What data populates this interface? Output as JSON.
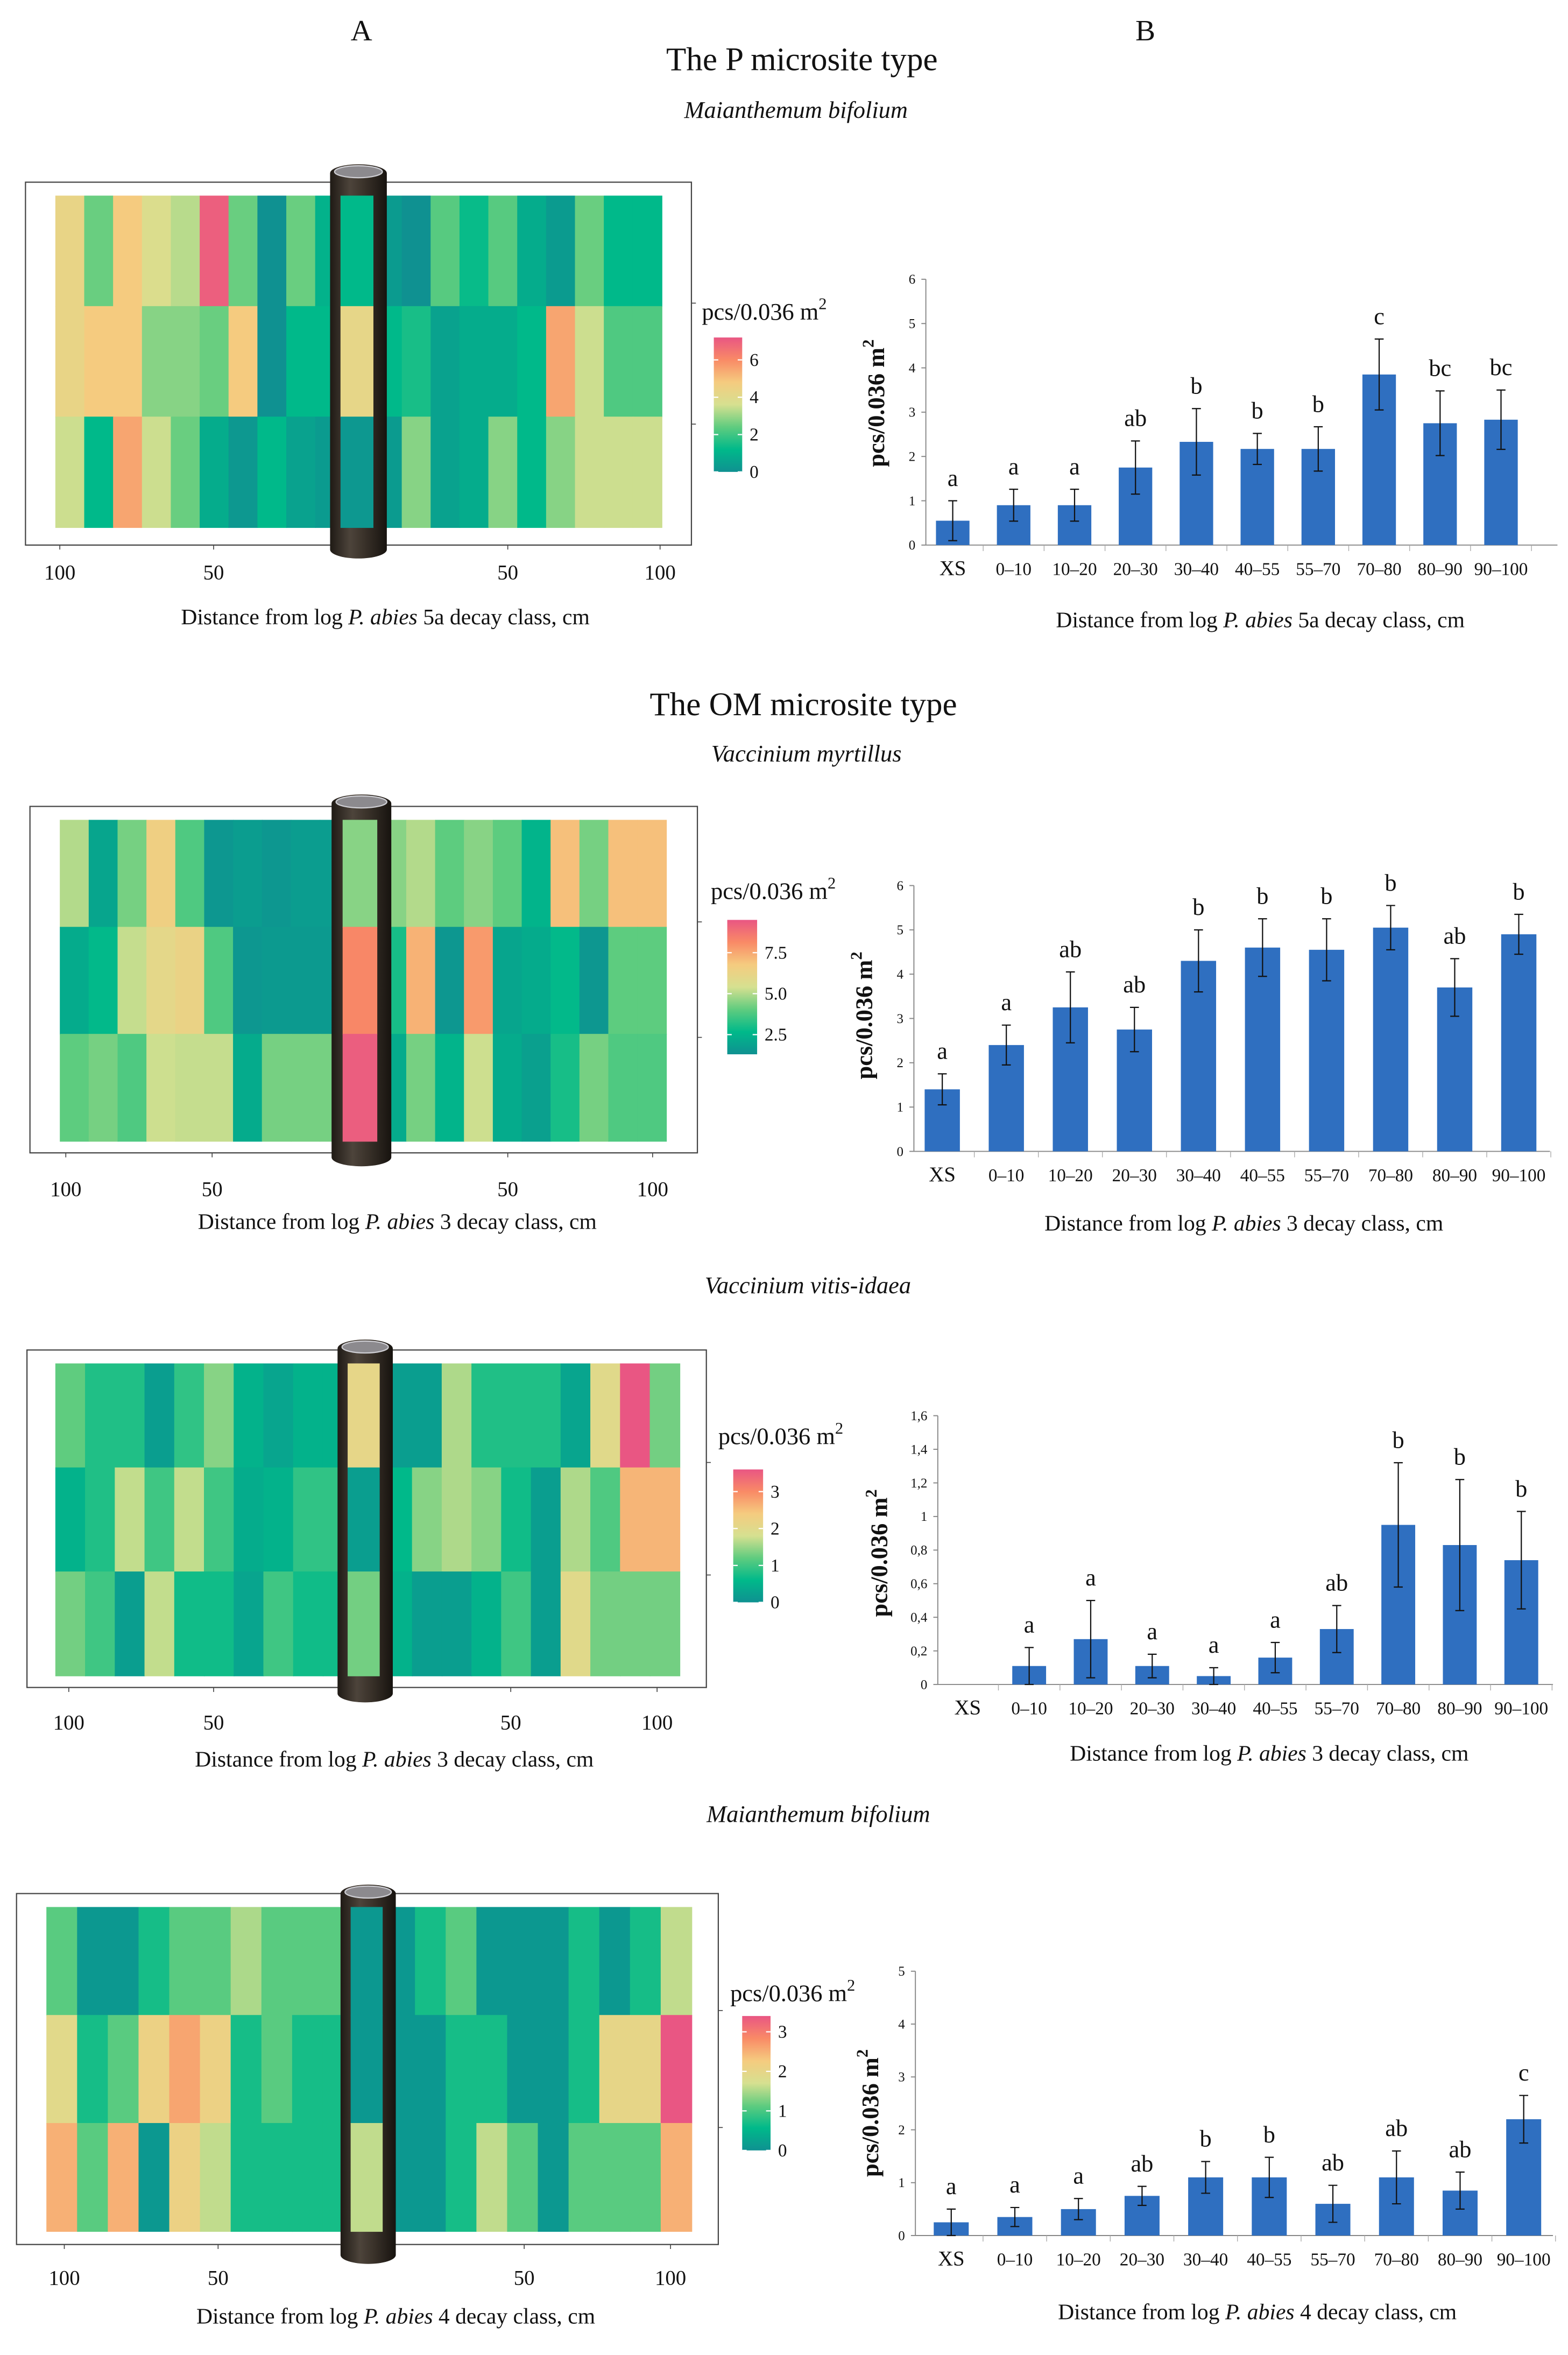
{
  "panel_labels": {
    "a": "A",
    "b": "B"
  },
  "sections": {
    "p": "The P microsite type",
    "om": "The OM microsite type"
  },
  "species": [
    "Maianthemum bifolium",
    "Vaccinium myrtillus",
    "Vaccinium vitis-idaea",
    "Maianthemum bifolium"
  ],
  "colors": {
    "bar": "#2f6fc0",
    "scale": [
      "#0f9191",
      "#00b98a",
      "#5fcc7f",
      "#d6e090",
      "#f5cb7f",
      "#f98a66",
      "#e95683"
    ]
  },
  "heatmaps": [
    {
      "legend_title": "pcs/0.036 m",
      "legend_sup": "2",
      "legend_range": [
        0,
        7.2
      ],
      "legend_ticks": [
        {
          "v": 0,
          "label": "0"
        },
        {
          "v": 2,
          "label": "2"
        },
        {
          "v": 4,
          "label": "4"
        },
        {
          "v": 6,
          "label": "6"
        }
      ],
      "x_tick_labels": [
        "100",
        "50",
        "50",
        "100"
      ],
      "xlabel": {
        "prefix": "Distance from  log ",
        "species": "P. abies",
        "suffix": " 5a decay class, cm"
      },
      "rows": [
        [
          4.3,
          2.5,
          4.8,
          3.8,
          3.3,
          7.0,
          2.5,
          0.0,
          2.5,
          1.0,
          1.2,
          0.3,
          0.0,
          2.3,
          1.3,
          2.3,
          0.8,
          0.3,
          2.5,
          1.2,
          1.2
        ],
        [
          4.3,
          4.8,
          4.8,
          2.8,
          2.8,
          2.5,
          4.8,
          0.0,
          1.2,
          1.2,
          4.2,
          1.2,
          1.5,
          0.5,
          0.8,
          0.8,
          1.2,
          5.5,
          3.5,
          2.2,
          2.2
        ],
        [
          3.5,
          1.2,
          5.5,
          3.5,
          2.5,
          0.8,
          0.2,
          1.2,
          0.5,
          0.3,
          0.2,
          0.3,
          2.8,
          0.5,
          0.8,
          2.8,
          1.2,
          2.8,
          3.5,
          3.5,
          3.5
        ]
      ]
    },
    {
      "legend_title": "pcs/0.036 m",
      "legend_sup": "2",
      "legend_range": [
        1.3,
        9.5
      ],
      "legend_ticks": [
        {
          "v": 2.5,
          "label": "2.5"
        },
        {
          "v": 5.0,
          "label": "5.0"
        },
        {
          "v": 7.5,
          "label": "7.5"
        }
      ],
      "x_tick_labels": [
        "100",
        "50",
        "50",
        "100"
      ],
      "xlabel": {
        "prefix": "Distance from log ",
        "species": "P. abies",
        "suffix": " 3 decay class, cm"
      },
      "rows": [
        [
          5.0,
          2.0,
          4.3,
          6.5,
          3.8,
          1.5,
          1.7,
          1.5,
          1.7,
          1.7,
          4.5,
          4.5,
          5.0,
          4.0,
          4.5,
          4.0,
          2.5,
          7.0,
          4.3,
          7.0,
          7.0
        ],
        [
          2.2,
          2.7,
          5.2,
          6.0,
          6.3,
          3.8,
          1.5,
          1.6,
          1.6,
          1.6,
          8.2,
          3.0,
          7.3,
          1.5,
          7.8,
          2.0,
          2.2,
          2.7,
          1.5,
          4.0,
          4.0
        ],
        [
          4.0,
          4.3,
          3.8,
          5.3,
          5.2,
          5.2,
          2.2,
          4.3,
          4.3,
          4.3,
          9.3,
          2.2,
          4.3,
          2.5,
          5.3,
          2.2,
          1.8,
          3.0,
          4.3,
          3.8,
          3.8
        ]
      ]
    },
    {
      "legend_title": "pcs/0.036 m",
      "legend_sup": "2",
      "legend_range": [
        0,
        3.6
      ],
      "legend_ticks": [
        {
          "v": 0,
          "label": "0"
        },
        {
          "v": 1,
          "label": "1"
        },
        {
          "v": 2,
          "label": "2"
        },
        {
          "v": 3,
          "label": "3"
        }
      ],
      "x_tick_labels": [
        "100",
        "50",
        "50",
        "100"
      ],
      "xlabel": {
        "prefix": "Distance from log ",
        "species": "P. abies",
        "suffix": " 3 decay class, cm"
      },
      "rows": [
        [
          1.2,
          0.8,
          0.8,
          0.2,
          0.9,
          1.4,
          0.5,
          0.3,
          0.5,
          0.5,
          2.1,
          0.2,
          0.2,
          1.6,
          0.8,
          0.8,
          0.8,
          0.3,
          2.0,
          3.6,
          1.3
        ],
        [
          0.5,
          0.8,
          1.7,
          1.0,
          1.7,
          1.0,
          0.4,
          0.5,
          0.9,
          0.9,
          0.2,
          0.6,
          1.4,
          1.6,
          1.4,
          0.7,
          0.2,
          1.6,
          1.1,
          2.6,
          2.6
        ],
        [
          1.3,
          1.0,
          0.2,
          1.7,
          0.7,
          0.7,
          0.3,
          1.0,
          0.7,
          0.7,
          1.3,
          0.5,
          0.2,
          0.2,
          0.5,
          1.0,
          0.2,
          2.0,
          1.3,
          1.3,
          1.3
        ]
      ]
    },
    {
      "legend_title": "pcs/0.036 m",
      "legend_sup": "2",
      "legend_range": [
        0,
        3.4
      ],
      "legend_ticks": [
        {
          "v": 0,
          "label": "0"
        },
        {
          "v": 1,
          "label": "1"
        },
        {
          "v": 2,
          "label": "2"
        },
        {
          "v": 3,
          "label": "3"
        }
      ],
      "x_tick_labels": [
        "100",
        "50",
        "50",
        "100"
      ],
      "xlabel": {
        "prefix": "Distance from log ",
        "species": "P. abies",
        "suffix": " 4 decay class, cm"
      },
      "rows": [
        [
          1.1,
          0.1,
          0.1,
          0.7,
          1.1,
          1.1,
          1.5,
          1.1,
          1.1,
          1.1,
          0.1,
          0.1,
          0.7,
          1.1,
          0.1,
          0.1,
          0.1,
          0.7,
          0.1,
          0.7,
          1.6
        ],
        [
          1.9,
          0.7,
          1.1,
          2.1,
          2.6,
          2.1,
          0.7,
          1.1,
          0.7,
          0.7,
          0.1,
          0.1,
          0.1,
          0.7,
          0.7,
          0.1,
          0.1,
          0.7,
          2.0,
          2.0,
          3.4
        ],
        [
          2.5,
          1.1,
          2.5,
          0.1,
          2.1,
          1.6,
          0.7,
          0.7,
          0.7,
          0.7,
          1.6,
          0.1,
          0.1,
          0.7,
          1.6,
          1.1,
          0.1,
          1.1,
          1.1,
          1.1,
          2.5
        ]
      ]
    }
  ],
  "chart_data": [
    {
      "type": "bar",
      "title": "",
      "ylabel": "pcs/0.036 m",
      "ylabel_sup": "2",
      "xlabel": {
        "prefix": "Distance from  log ",
        "species": "P. abies",
        "suffix": " 5a decay class, cm"
      },
      "categories": [
        "XS",
        "0–10",
        "10–20",
        "20–30",
        "30–40",
        "40–55",
        "55–70",
        "70–80",
        "80–90",
        "90–100"
      ],
      "values": [
        0.55,
        0.9,
        0.9,
        1.75,
        2.33,
        2.17,
        2.17,
        3.85,
        2.75,
        2.83
      ],
      "errors": [
        0.45,
        0.36,
        0.36,
        0.6,
        0.75,
        0.35,
        0.5,
        0.8,
        0.73,
        0.67
      ],
      "letters": [
        "a",
        "a",
        "a",
        "ab",
        "b",
        "b",
        "b",
        "c",
        "bc",
        "bc"
      ],
      "ylim": [
        0,
        6
      ],
      "y_ticks": [
        {
          "v": 0,
          "label": "0"
        },
        {
          "v": 1,
          "label": "1"
        },
        {
          "v": 2,
          "label": "2"
        },
        {
          "v": 3,
          "label": "3"
        },
        {
          "v": 4,
          "label": "4"
        },
        {
          "v": 5,
          "label": "5"
        },
        {
          "v": 6,
          "label": "6"
        }
      ]
    },
    {
      "type": "bar",
      "title": "",
      "ylabel": "pcs/0.036 m",
      "ylabel_sup": "2",
      "xlabel": {
        "prefix": "Distance from  log ",
        "species": "P. abies",
        "suffix": " 3 decay class, cm"
      },
      "categories": [
        "XS",
        "0–10",
        "10–20",
        "20–30",
        "30–40",
        "40–55",
        "55–70",
        "70–80",
        "80–90",
        "90–100"
      ],
      "values": [
        1.4,
        2.4,
        3.25,
        2.75,
        4.3,
        4.6,
        4.55,
        5.05,
        3.7,
        4.9
      ],
      "errors": [
        0.35,
        0.45,
        0.8,
        0.5,
        0.7,
        0.65,
        0.7,
        0.5,
        0.65,
        0.45
      ],
      "letters": [
        "a",
        "a",
        "ab",
        "ab",
        "b",
        "b",
        "b",
        "b",
        "ab",
        "b"
      ],
      "ylim": [
        0,
        6
      ],
      "y_ticks": [
        {
          "v": 0,
          "label": "0"
        },
        {
          "v": 1,
          "label": "1"
        },
        {
          "v": 2,
          "label": "2"
        },
        {
          "v": 3,
          "label": "3"
        },
        {
          "v": 4,
          "label": "4"
        },
        {
          "v": 5,
          "label": "5"
        },
        {
          "v": 6,
          "label": "6"
        }
      ]
    },
    {
      "type": "bar",
      "title": "",
      "ylabel": "pcs/0.036 m",
      "ylabel_sup": "2",
      "xlabel": {
        "prefix": "Distance from log ",
        "species": "P. abies",
        "suffix": " 3 decay class, cm"
      },
      "categories": [
        "XS",
        "0–10",
        "10–20",
        "20–30",
        "30–40",
        "40–55",
        "55–70",
        "70–80",
        "80–90",
        "90–100"
      ],
      "values": [
        0,
        0.11,
        0.27,
        0.11,
        0.05,
        0.16,
        0.33,
        0.95,
        0.83,
        0.74
      ],
      "errors": [
        0,
        0.11,
        0.23,
        0.07,
        0.05,
        0.09,
        0.14,
        0.37,
        0.39,
        0.29
      ],
      "letters": [
        "",
        "a",
        "a",
        "a",
        "a",
        "a",
        "ab",
        "b",
        "b",
        "b"
      ],
      "ylim": [
        0,
        1.6
      ],
      "y_ticks": [
        {
          "v": 0,
          "label": "0"
        },
        {
          "v": 0.2,
          "label": "0,2"
        },
        {
          "v": 0.4,
          "label": "0,4"
        },
        {
          "v": 0.6,
          "label": "0,6"
        },
        {
          "v": 0.8,
          "label": "0,8"
        },
        {
          "v": 1.0,
          "label": "1"
        },
        {
          "v": 1.2,
          "label": "1,2"
        },
        {
          "v": 1.4,
          "label": "1,4"
        },
        {
          "v": 1.6,
          "label": "1,6"
        }
      ]
    },
    {
      "type": "bar",
      "title": "",
      "ylabel": "pcs/0.036 m",
      "ylabel_sup": "2",
      "xlabel": {
        "prefix": "Distance from log ",
        "species": "P. abies",
        "suffix": " 4 decay class, cm"
      },
      "categories": [
        "XS",
        "0–10",
        "10–20",
        "20–30",
        "30–40",
        "40–55",
        "55–70",
        "70–80",
        "80–90",
        "90–100"
      ],
      "values": [
        0.25,
        0.35,
        0.5,
        0.75,
        1.1,
        1.1,
        0.6,
        1.1,
        0.85,
        2.2
      ],
      "errors": [
        0.25,
        0.18,
        0.2,
        0.18,
        0.3,
        0.38,
        0.35,
        0.5,
        0.35,
        0.45
      ],
      "letters": [
        "a",
        "a",
        "a",
        "ab",
        "b",
        "b",
        "ab",
        "ab",
        "ab",
        "c"
      ],
      "ylim": [
        0,
        5
      ],
      "y_ticks": [
        {
          "v": 0,
          "label": "0"
        },
        {
          "v": 1,
          "label": "1"
        },
        {
          "v": 2,
          "label": "2"
        },
        {
          "v": 3,
          "label": "3"
        },
        {
          "v": 4,
          "label": "4"
        },
        {
          "v": 5,
          "label": "5"
        }
      ]
    }
  ]
}
